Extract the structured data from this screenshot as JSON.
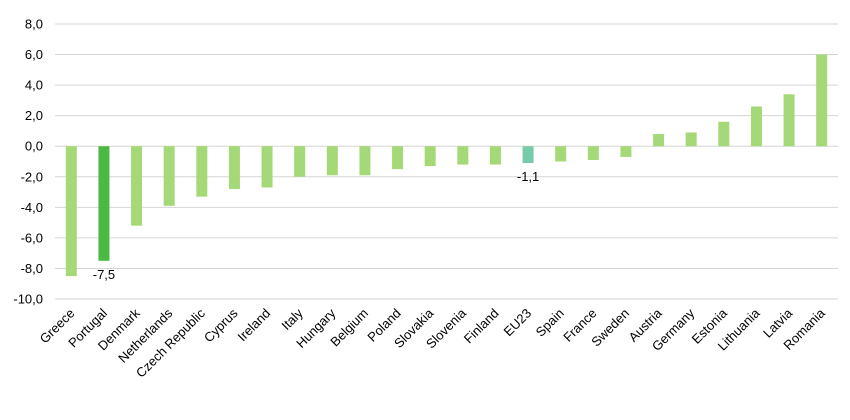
{
  "chart_data": {
    "type": "bar",
    "title": "",
    "xlabel": "",
    "ylabel": "",
    "ylim": [
      -10,
      8
    ],
    "yticks": [
      8,
      6,
      4,
      2,
      0,
      -2,
      -4,
      -6,
      -8,
      -10
    ],
    "ytick_labels": [
      "8,0",
      "6,0",
      "4,0",
      "2,0",
      "0,0",
      "-2,0",
      "-4,0",
      "-6,0",
      "-8,0",
      "-10,0"
    ],
    "grid": true,
    "legend": "none",
    "categories": [
      "Greece",
      "Portugal",
      "Denmark",
      "Netherlands",
      "Czech Republic",
      "Cyprus",
      "Ireland",
      "Italy",
      "Hungary",
      "Belgium",
      "Poland",
      "Slovakia",
      "Slovenia",
      "Finland",
      "EU23",
      "Spain",
      "France",
      "Sweden",
      "Austria",
      "Germany",
      "Estonia",
      "Lithuania",
      "Latvia",
      "Romania"
    ],
    "values": [
      -8.5,
      -7.5,
      -5.2,
      -3.9,
      -3.3,
      -2.8,
      -2.7,
      -2.0,
      -1.9,
      -1.9,
      -1.5,
      -1.3,
      -1.2,
      -1.2,
      -1.1,
      -1.0,
      -0.9,
      -0.7,
      0.8,
      0.9,
      1.6,
      2.6,
      3.4,
      6.0
    ],
    "colors": {
      "default": "#a5d977",
      "Portugal": "#4cb944",
      "EU23": "#77cba9",
      "grid": "#d6d6d6"
    },
    "data_labels": [
      {
        "category": "Portugal",
        "text": "-7,5"
      },
      {
        "category": "EU23",
        "text": "-1,1"
      }
    ]
  }
}
